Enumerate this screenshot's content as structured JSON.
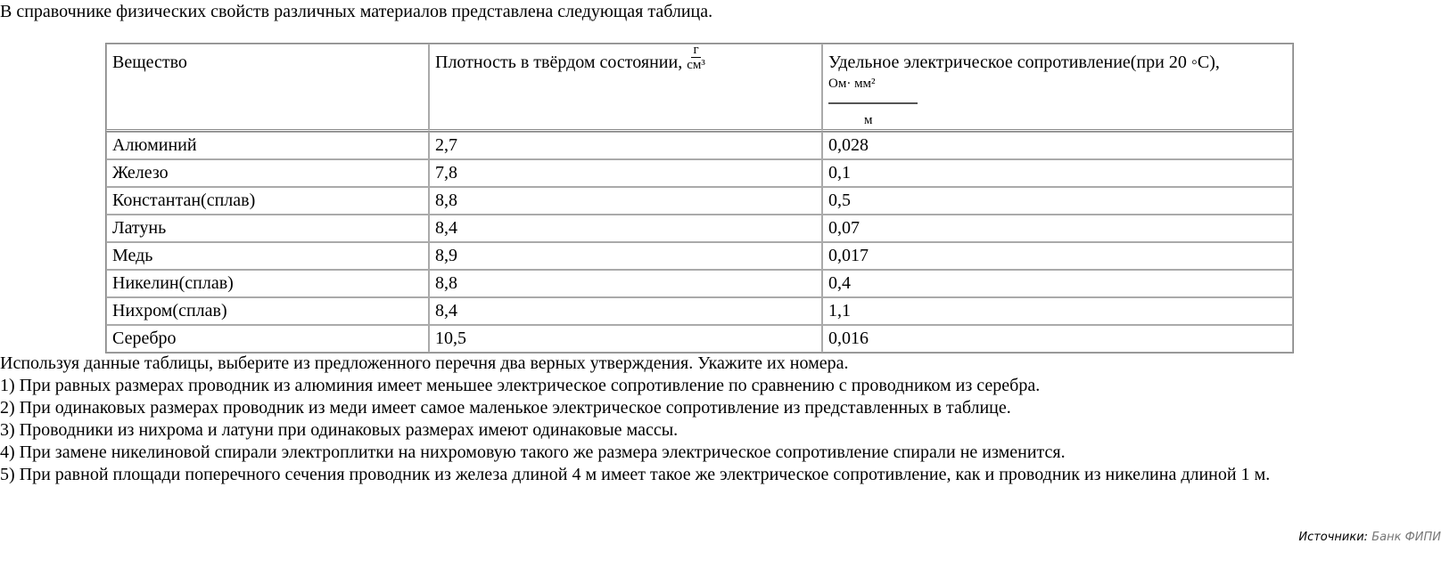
{
  "intro": "В справочнике физических свойств различных материалов представлена следующая таблица.",
  "table": {
    "headers": {
      "substance": "Вещество",
      "density": "Плотность в твёрдом состоянии,",
      "density_num": "г",
      "density_den": "см³",
      "resistivity": "Удельное электрическое сопротивление(при 20 ◦C),",
      "res_num": "Ом· мм²",
      "res_den": "м"
    },
    "rows": [
      [
        "Алюминий",
        "2,7",
        "0,028"
      ],
      [
        "Железо",
        "7,8",
        "0,1"
      ],
      [
        "Константан(сплав)",
        "8,8",
        "0,5"
      ],
      [
        "Латунь",
        "8,4",
        "0,07"
      ],
      [
        "Медь",
        "8,9",
        "0,017"
      ],
      [
        "Никелин(сплав)",
        "8,8",
        "0,4"
      ],
      [
        "Нихром(сплав)",
        "8,4",
        "1,1"
      ],
      [
        "Серебро",
        "10,5",
        "0,016"
      ]
    ]
  },
  "question": {
    "prompt": "Используя данные таблицы, выберите из предложенного перечня два верных утверждения. Укажите их номера.",
    "options": [
      "1) При равных размерах проводник из алюминия имеет меньшее электрическое сопротивление по сравнению с проводником из серебра.",
      "2) При одинаковых размерах проводник из меди имеет самое маленькое электрическое сопротивление из представленных в таблице.",
      "3) Проводники из нихрома и латуни при одинаковых размерах имеют одинаковые массы.",
      "4) При замене никелиновой спирали электроплитки на нихромовую такого же размера электрическое сопротивление спирали не изменится.",
      "5) При равной площади поперечного сечения проводник из железа длиной 4 м имеет такое же электрическое сопротивление, как и проводник из никелина длиной 1 м."
    ]
  },
  "source": {
    "label": "Источники:",
    "link": "Банк ФИПИ"
  }
}
